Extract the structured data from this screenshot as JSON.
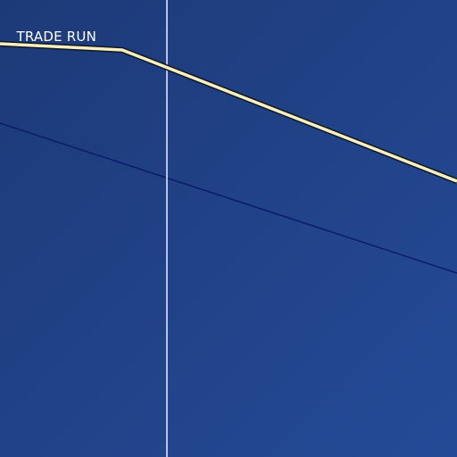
{
  "map": {
    "background": {
      "color_start": "#1d3a78",
      "color_end": "#244a97"
    },
    "trails": [
      {
        "name": "TRADE RUN",
        "color": "#f7efc3",
        "outline_color": "#101820",
        "type": "ski-run"
      }
    ],
    "lines": [
      {
        "type": "thin-dark-line",
        "color": "#0c1a6b"
      },
      {
        "type": "vertical-light-line",
        "color": "#b9c2e6"
      }
    ]
  }
}
